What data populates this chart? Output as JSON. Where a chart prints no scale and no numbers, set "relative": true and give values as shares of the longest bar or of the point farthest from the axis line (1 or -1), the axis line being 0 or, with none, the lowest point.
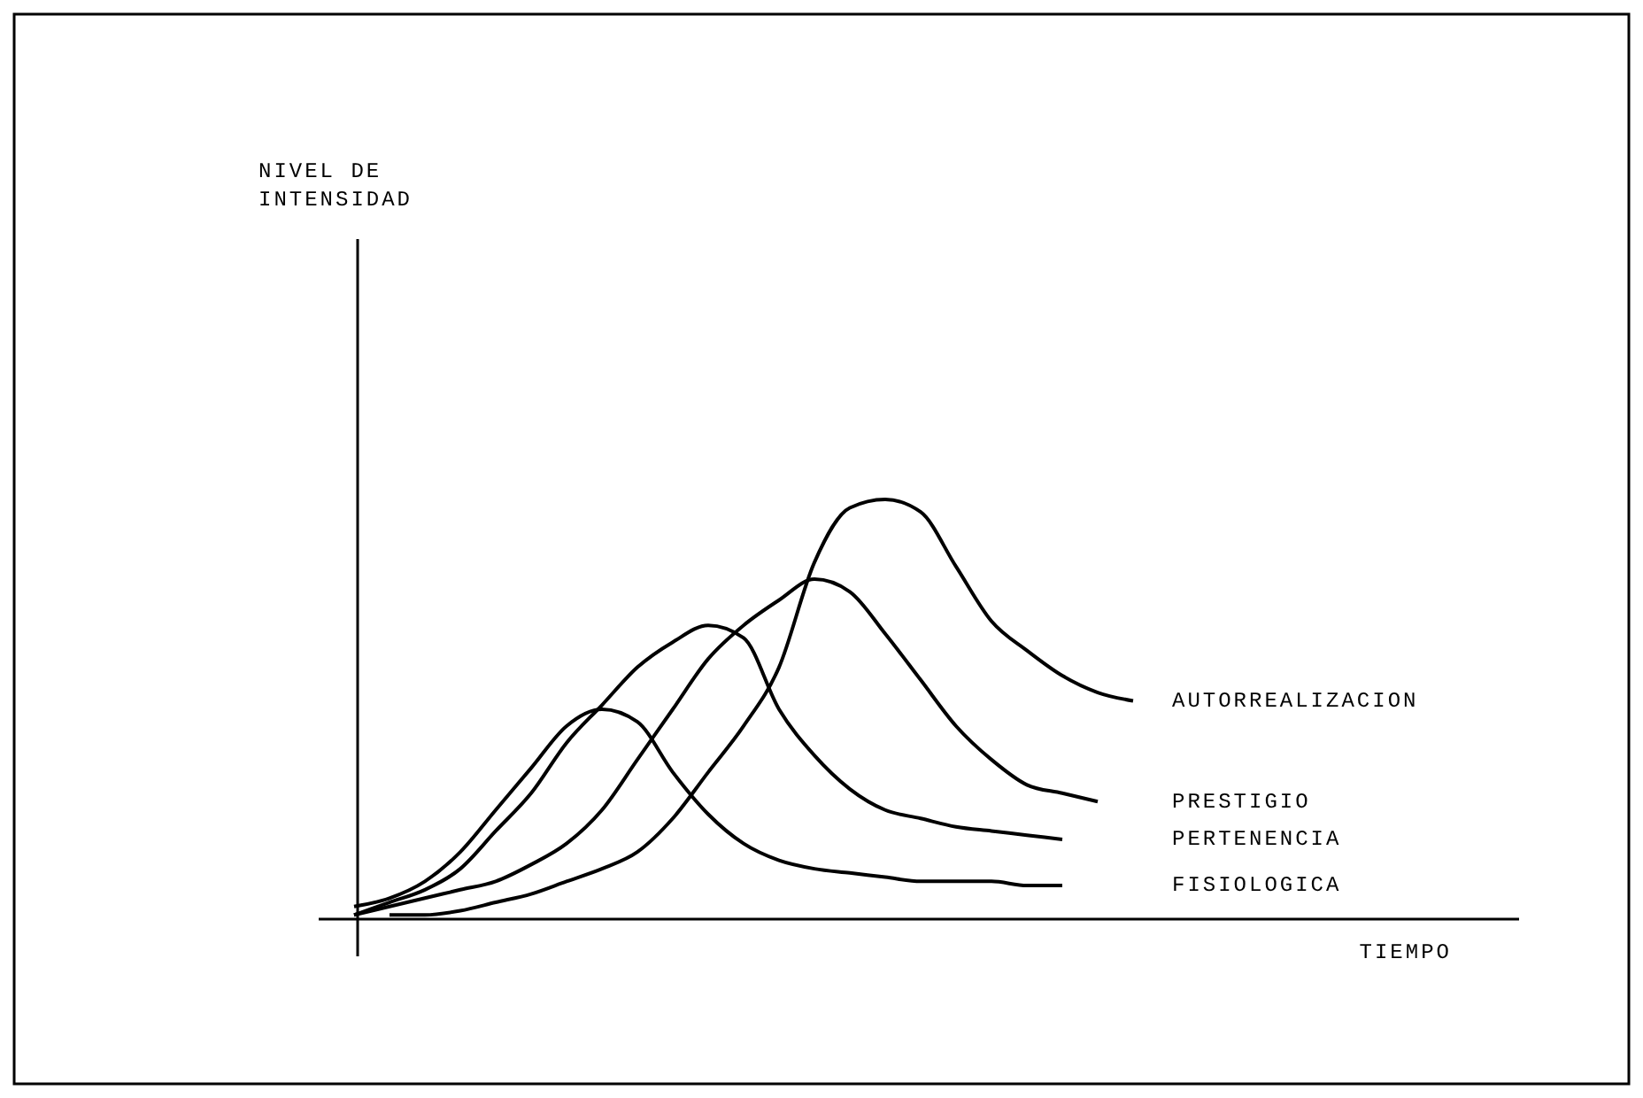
{
  "chart_data": {
    "type": "line",
    "relative": true,
    "annotations": [
      "NIVEL DE\nINTENSIDAD",
      "TIEMPO"
    ],
    "marker": "none",
    "line_style": "solid",
    "categories": [
      null,
      null,
      null,
      null,
      null,
      null,
      null,
      null,
      null,
      null,
      null,
      null,
      null,
      null,
      null,
      null,
      null,
      null,
      null,
      null,
      null,
      null,
      null
    ],
    "series": [
      {
        "name": "AUTORREALIZACION",
        "color": "#000000",
        "values": [
          null,
          0.01,
          0.01,
          0.02,
          0.04,
          0.06,
          0.09,
          0.12,
          0.16,
          0.24,
          0.35,
          0.46,
          0.6,
          0.85,
          0.98,
          1,
          0.97,
          0.84,
          0.71,
          0.64,
          0.58,
          0.54,
          0.52
        ]
      },
      {
        "name": "PRESTIGIO",
        "color": "#000000",
        "values": [
          0.01,
          0.03,
          0.05,
          0.07,
          0.09,
          0.13,
          0.18,
          0.26,
          0.38,
          0.5,
          0.62,
          0.7,
          0.76,
          0.81,
          0.78,
          0.68,
          0.57,
          0.46,
          0.38,
          0.32,
          0.3,
          0.28,
          null
        ]
      },
      {
        "name": "PERTENENCIA",
        "color": "#000000",
        "values": [
          0.01,
          0.04,
          0.07,
          0.12,
          0.21,
          0.3,
          0.42,
          0.51,
          0.6,
          0.66,
          0.7,
          0.67,
          0.5,
          0.39,
          0.31,
          0.26,
          0.24,
          0.22,
          0.21,
          0.2,
          0.19,
          null,
          null
        ]
      },
      {
        "name": "FISIOLOGICA",
        "color": "#000000",
        "values": [
          0.03,
          0.05,
          0.09,
          0.16,
          0.26,
          0.36,
          0.46,
          0.5,
          0.47,
          0.35,
          0.25,
          0.18,
          0.14,
          0.12,
          0.11,
          0.1,
          0.09,
          0.09,
          0.09,
          0.08,
          0.08,
          null,
          null
        ]
      }
    ]
  }
}
